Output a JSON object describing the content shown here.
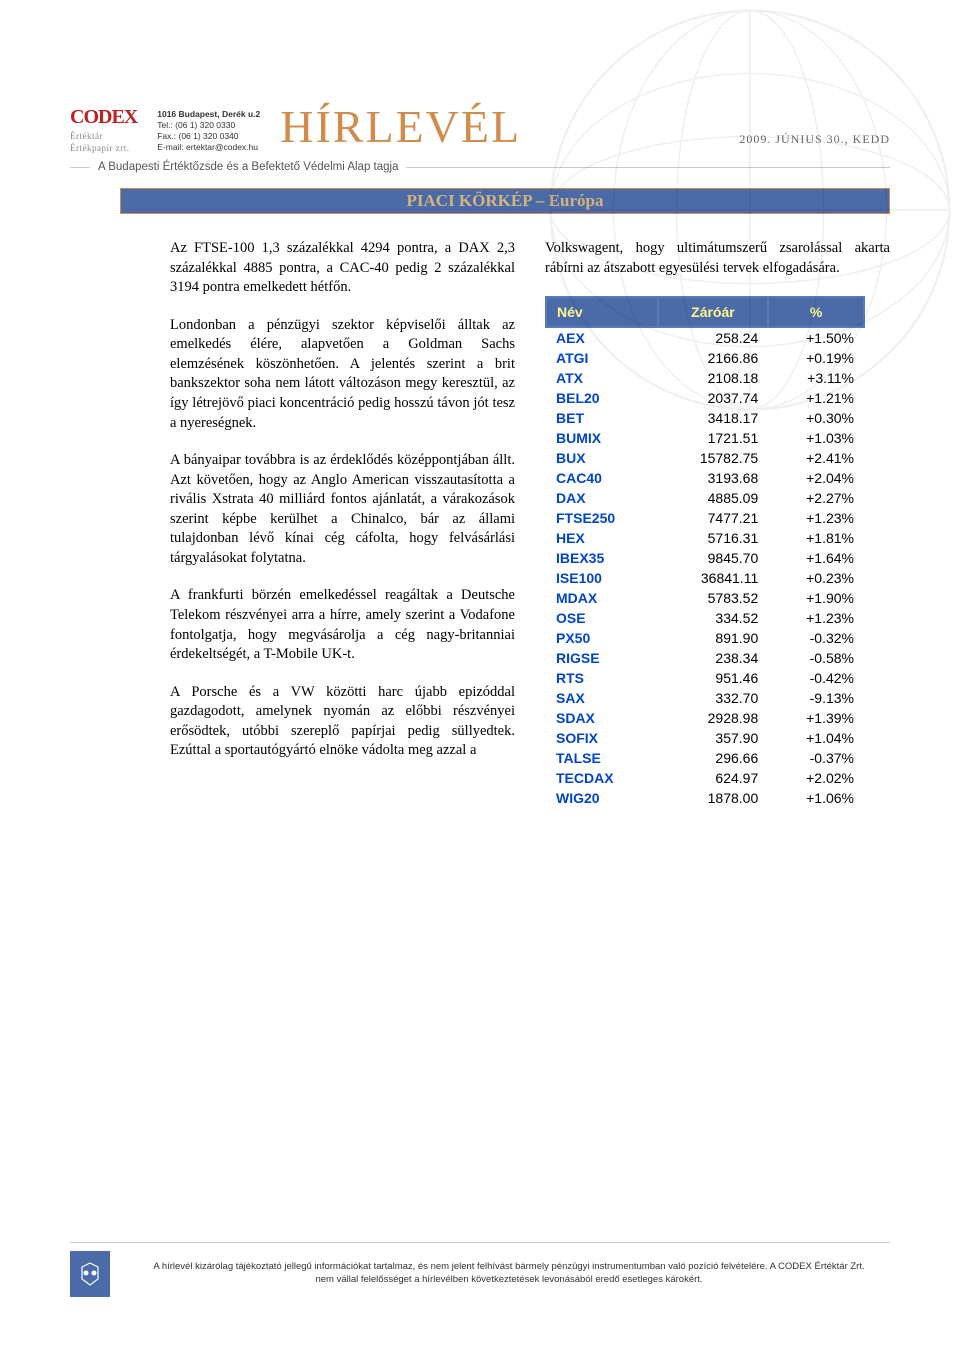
{
  "header": {
    "logo_text": "CODEX",
    "logo_sub1": "Értéktár",
    "logo_sub2": "Értékpapír zrt.",
    "contact_line1": "1016 Budapest, Derék u.2",
    "contact_line2": "Tel.: (06 1) 320 0330",
    "contact_line3": "Fax.: (06 1) 320 0340",
    "contact_line4": "E-mail: ertektar@codex.hu",
    "title": "HÍRLEVÉL",
    "date": "2009. JÚNIUS 30., KEDD",
    "subtitle": "A Budapesti Értéktőzsde és a Befektető Védelmi Alap tagja"
  },
  "section_title": "PIACI KÖRKÉP – Európa",
  "body": {
    "p1": "Az FTSE-100 1,3 százalékkal 4294 pontra, a DAX 2,3 százalékkal 4885 pontra, a CAC-40 pedig 2 százalékkal 3194 pontra emelkedett hétfőn.",
    "p2": "Londonban a pénzügyi szektor képviselői álltak az emelkedés élére, alapvetően a Goldman Sachs elemzésének köszönhetően. A jelentés szerint a brit bankszektor soha nem látott változáson megy keresztül, az így létrejövő piaci koncentráció pedig hosszú távon jót tesz a nyereségnek.",
    "p3": "A bányaipar továbbra is az érdeklődés középpontjában állt. Azt követően, hogy az Anglo American visszautasította a rivális Xstrata 40 milliárd fontos ajánlatát, a várakozások szerint képbe kerülhet a Chinalco, bár az állami tulajdonban lévő kínai cég cáfolta, hogy felvásárlási tárgyalásokat folytatna.",
    "p4": "A frankfurti börzén emelkedéssel reagáltak a Deutsche Telekom részvényei arra a hírre, amely szerint a Vodafone fontolgatja, hogy megvásárolja a cég nagy-britanniai érdekeltségét, a T-Mobile UK-t.",
    "p5": "A Porsche és a VW közötti harc újabb epizóddal gazdagodott, amelynek nyomán az előbbi részvényei erősödtek, utóbbi szereplő papírjai pedig süllyedtek. Ezúttal a sportautógyártó elnöke vádolta meg azzal a",
    "right_intro": "Volkswagent, hogy ultimátumszerű zsarolással akarta rábírni az átszabott egyesülési tervek elfogadására."
  },
  "table": {
    "header_color": "#4a6aa8",
    "header_text_color": "#fff78a",
    "name_color": "#0044cc",
    "columns": [
      "Név",
      "Záróár",
      "%"
    ],
    "rows": [
      [
        "AEX",
        "258.24",
        "+1.50%"
      ],
      [
        "ATGI",
        "2166.86",
        "+0.19%"
      ],
      [
        "ATX",
        "2108.18",
        "+3.11%"
      ],
      [
        "BEL20",
        "2037.74",
        "+1.21%"
      ],
      [
        "BET",
        "3418.17",
        "+0.30%"
      ],
      [
        "BUMIX",
        "1721.51",
        "+1.03%"
      ],
      [
        "BUX",
        "15782.75",
        "+2.41%"
      ],
      [
        "CAC40",
        "3193.68",
        "+2.04%"
      ],
      [
        "DAX",
        "4885.09",
        "+2.27%"
      ],
      [
        "FTSE250",
        "7477.21",
        "+1.23%"
      ],
      [
        "HEX",
        "5716.31",
        "+1.81%"
      ],
      [
        "IBEX35",
        "9845.70",
        "+1.64%"
      ],
      [
        "ISE100",
        "36841.11",
        "+0.23%"
      ],
      [
        "MDAX",
        "5783.52",
        "+1.90%"
      ],
      [
        "OSE",
        "334.52",
        "+1.23%"
      ],
      [
        "PX50",
        "891.90",
        "-0.32%"
      ],
      [
        "RIGSE",
        "238.34",
        "-0.58%"
      ],
      [
        "RTS",
        "951.46",
        "-0.42%"
      ],
      [
        "SAX",
        "332.70",
        "-9.13%"
      ],
      [
        "SDAX",
        "2928.98",
        "+1.39%"
      ],
      [
        "SOFIX",
        "357.90",
        "+1.04%"
      ],
      [
        "TALSE",
        "296.66",
        "-0.37%"
      ],
      [
        "TECDAX",
        "624.97",
        "+2.02%"
      ],
      [
        "WIG20",
        "1878.00",
        "+1.06%"
      ]
    ]
  },
  "footer": {
    "line1": "A hírlevél kizárólag tájékoztató jellegű információkat tartalmaz, és nem jelent felhívást bármely pénzügyi instrumentumban való pozíció felvételére. A CODEX Értéktár Zrt.",
    "line2": "nem vállal felelősséget a hírlevélben következtetések levonásából eredő esetleges károkért."
  }
}
